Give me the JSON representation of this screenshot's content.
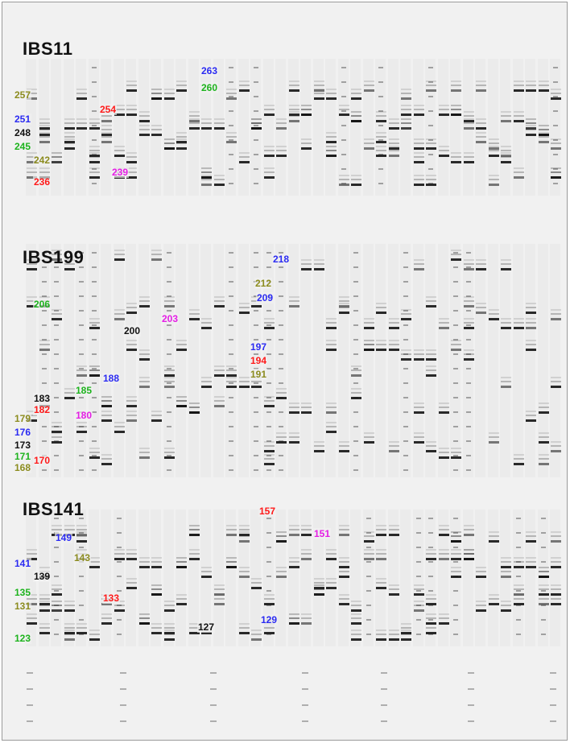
{
  "colors": {
    "background": "#f1f1f1",
    "band": "#141414",
    "red": "#ff1a1a",
    "blue": "#2b2bf2",
    "green": "#1db31d",
    "olive": "#8c8c1f",
    "black": "#111111",
    "magenta": "#e51ee5"
  },
  "panels": [
    {
      "title": "IBS11",
      "allele_labels": [
        {
          "text": "257",
          "color": "olive"
        },
        {
          "text": "251",
          "color": "blue"
        },
        {
          "text": "248",
          "color": "black"
        },
        {
          "text": "245",
          "color": "green"
        },
        {
          "text": "242",
          "color": "olive"
        },
        {
          "text": "236",
          "color": "red"
        },
        {
          "text": "254",
          "color": "red"
        },
        {
          "text": "239",
          "color": "magenta"
        },
        {
          "text": "263",
          "color": "blue"
        },
        {
          "text": "260",
          "color": "green"
        }
      ]
    },
    {
      "title": "IBS199",
      "allele_labels": [
        {
          "text": "206",
          "color": "green"
        },
        {
          "text": "200",
          "color": "black"
        },
        {
          "text": "203",
          "color": "magenta"
        },
        {
          "text": "218",
          "color": "blue"
        },
        {
          "text": "212",
          "color": "olive"
        },
        {
          "text": "209",
          "color": "blue"
        },
        {
          "text": "197",
          "color": "blue"
        },
        {
          "text": "194",
          "color": "red"
        },
        {
          "text": "191",
          "color": "olive"
        },
        {
          "text": "188",
          "color": "blue"
        },
        {
          "text": "185",
          "color": "green"
        },
        {
          "text": "183",
          "color": "black"
        },
        {
          "text": "182",
          "color": "red"
        },
        {
          "text": "180",
          "color": "magenta"
        },
        {
          "text": "179",
          "color": "olive"
        },
        {
          "text": "176",
          "color": "blue"
        },
        {
          "text": "173",
          "color": "black"
        },
        {
          "text": "171",
          "color": "green"
        },
        {
          "text": "170",
          "color": "red"
        },
        {
          "text": "168",
          "color": "olive"
        }
      ]
    },
    {
      "title": "IBS141",
      "allele_labels": [
        {
          "text": "157",
          "color": "red"
        },
        {
          "text": "149",
          "color": "blue"
        },
        {
          "text": "151",
          "color": "magenta"
        },
        {
          "text": "143",
          "color": "olive"
        },
        {
          "text": "141",
          "color": "blue"
        },
        {
          "text": "139",
          "color": "black"
        },
        {
          "text": "135",
          "color": "green"
        },
        {
          "text": "133",
          "color": "red"
        },
        {
          "text": "131",
          "color": "olive"
        },
        {
          "text": "127",
          "color": "black"
        },
        {
          "text": "129",
          "color": "blue"
        },
        {
          "text": "123",
          "color": "green"
        }
      ]
    }
  ]
}
